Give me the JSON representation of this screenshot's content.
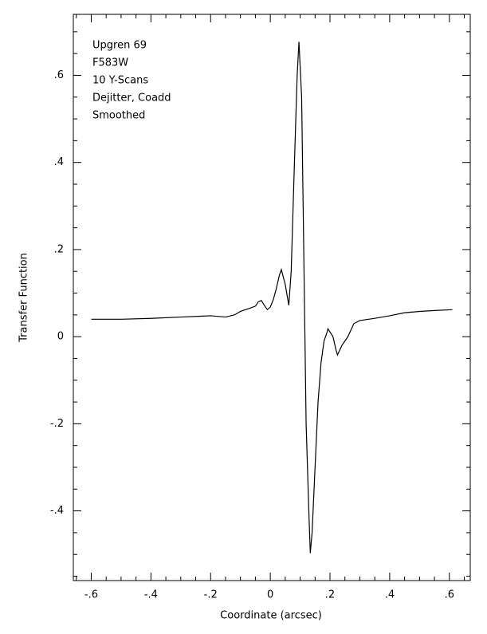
{
  "chart_data": {
    "type": "line",
    "xlabel": "Coordinate (arcsec)",
    "ylabel": "Transfer Function",
    "annotations": [
      "Upgren 69",
      "F583W",
      "10 Y-Scans",
      "Dejitter, Coadd",
      "Smoothed"
    ],
    "xlim": [
      -0.66,
      0.67
    ],
    "ylim": [
      -0.56,
      0.74
    ],
    "xticks": [
      {
        "value": -0.6,
        "label": "-.6"
      },
      {
        "value": -0.4,
        "label": "-.4"
      },
      {
        "value": -0.2,
        "label": "-.2"
      },
      0,
      {
        "value": 0.2,
        "label": ".2"
      },
      {
        "value": 0.4,
        "label": ".4"
      },
      {
        "value": 0.6,
        "label": ".6"
      }
    ],
    "yticks": [
      {
        "value": -0.4,
        "label": "-.4"
      },
      {
        "value": -0.2,
        "label": "-.2"
      },
      0,
      {
        "value": 0.2,
        "label": ".2"
      },
      {
        "value": 0.4,
        "label": ".4"
      },
      {
        "value": 0.6,
        "label": ".6"
      }
    ],
    "xminorticks": [
      -0.65,
      -0.55,
      -0.5,
      -0.45,
      -0.35,
      -0.3,
      -0.25,
      -0.15,
      -0.1,
      -0.05,
      0.05,
      0.1,
      0.15,
      0.25,
      0.3,
      0.35,
      0.45,
      0.5,
      0.55,
      0.65
    ],
    "yminorticks": [
      -0.55,
      -0.5,
      -0.45,
      -0.35,
      -0.3,
      -0.25,
      -0.15,
      -0.1,
      -0.05,
      0.05,
      0.1,
      0.15,
      0.25,
      0.3,
      0.35,
      0.45,
      0.5,
      0.55,
      0.65,
      0.7
    ],
    "series": [
      {
        "color": "#000000",
        "x": [
          -0.6,
          -0.5,
          -0.4,
          -0.3,
          -0.2,
          -0.15,
          -0.12,
          -0.1,
          -0.07,
          -0.05,
          -0.04,
          -0.03,
          -0.02,
          -0.01,
          0,
          0.01,
          0.02,
          0.03,
          0.037,
          0.05,
          0.062,
          0.07,
          0.08,
          0.09,
          0.096,
          0.105,
          0.11,
          0.115,
          0.12,
          0.13,
          0.134,
          0.14,
          0.15,
          0.16,
          0.17,
          0.18,
          0.19,
          0.193,
          0.21,
          0.22,
          0.225,
          0.24,
          0.26,
          0.28,
          0.3,
          0.35,
          0.4,
          0.45,
          0.5,
          0.55,
          0.61
        ],
        "values": [
          0.04,
          0.04,
          0.042,
          0.045,
          0.048,
          0.045,
          0.05,
          0.058,
          0.065,
          0.07,
          0.08,
          0.083,
          0.072,
          0.062,
          0.068,
          0.085,
          0.11,
          0.14,
          0.154,
          0.12,
          0.072,
          0.15,
          0.38,
          0.6,
          0.677,
          0.55,
          0.3,
          0.05,
          -0.2,
          -0.42,
          -0.497,
          -0.45,
          -0.3,
          -0.15,
          -0.06,
          -0.01,
          0.01,
          0.018,
          0.0,
          -0.03,
          -0.042,
          -0.02,
          0.0,
          0.03,
          0.037,
          0.042,
          0.048,
          0.055,
          0.058,
          0.06,
          0.062
        ]
      }
    ]
  }
}
